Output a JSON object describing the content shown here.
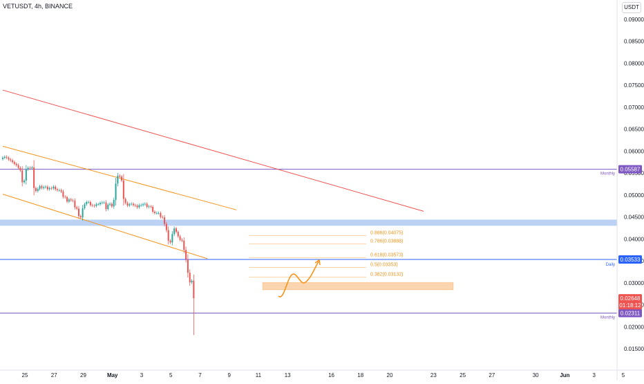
{
  "header": {
    "symbol_line": "VETUSDT, 4h, BINANCE",
    "currency": "USDT"
  },
  "colors": {
    "up": "#26a69a",
    "down": "#ef5350",
    "channel": "#f7931a",
    "trendline": "#ef5350",
    "monthly": "#7e57c2",
    "daily": "#2962ff",
    "zone_blue": "#bbd2f5",
    "zone_orange": "#fbd5b0",
    "projection": "#f7931a"
  },
  "chart_data": {
    "type": "candlestick",
    "price_axis": {
      "min": 0.0105,
      "max": 0.0935,
      "ticks": [
        "0.09000",
        "0.08500",
        "0.08000",
        "0.07500",
        "0.07000",
        "0.06500",
        "0.06000",
        "0.05500",
        "0.05000",
        "0.04500",
        "0.04000",
        "0.03500",
        "0.03000",
        "0.02500",
        "0.02000",
        "0.01500"
      ]
    },
    "time_axis": {
      "labels": [
        {
          "text": "25",
          "i": 0
        },
        {
          "text": "27",
          "i": 12
        },
        {
          "text": "29",
          "i": 24
        },
        {
          "text": "May",
          "i": 36
        },
        {
          "text": "3",
          "i": 48
        },
        {
          "text": "5",
          "i": 60
        },
        {
          "text": "7",
          "i": 72
        },
        {
          "text": "9",
          "i": 84
        },
        {
          "text": "11",
          "i": 96
        },
        {
          "text": "13",
          "i": 108
        },
        {
          "text": "16",
          "i": 126
        },
        {
          "text": "18",
          "i": 138
        },
        {
          "text": "20",
          "i": 150
        },
        {
          "text": "23",
          "i": 168
        },
        {
          "text": "25",
          "i": 180
        },
        {
          "text": "27",
          "i": 192
        },
        {
          "text": "30",
          "i": 210
        },
        {
          "text": "Jun",
          "i": 222
        },
        {
          "text": "3",
          "i": 234
        },
        {
          "text": "5",
          "i": 246
        }
      ]
    },
    "candles_close": [
      0.0585,
      0.0587,
      0.0585,
      0.0581,
      0.0579,
      0.0575,
      0.0571,
      0.0568,
      0.0562,
      0.0556,
      0.0529,
      0.0533,
      0.0559,
      0.0562,
      0.0561,
      0.0563,
      0.0516,
      0.0509,
      0.0514,
      0.052,
      0.0516,
      0.0518,
      0.0519,
      0.0513,
      0.0516,
      0.0515,
      0.0519,
      0.0513,
      0.0511,
      0.0511,
      0.0508,
      0.0496,
      0.0495,
      0.0485,
      0.049,
      0.0488,
      0.0487,
      0.0472,
      0.0469,
      0.0452,
      0.0449,
      0.047,
      0.0479,
      0.0484,
      0.0484,
      0.0477,
      0.0476,
      0.0475,
      0.0479,
      0.0479,
      0.0482,
      0.0483,
      0.0483,
      0.0468,
      0.0478,
      0.048,
      0.0474,
      0.0489,
      0.0526,
      0.0544,
      0.0542,
      0.0533,
      0.0491,
      0.0482,
      0.0476,
      0.0479,
      0.048,
      0.0477,
      0.0476,
      0.0472,
      0.0477,
      0.0477,
      0.0479,
      0.048,
      0.0473,
      0.0474,
      0.0473,
      0.0462,
      0.0459,
      0.0459,
      0.0459,
      0.045,
      0.0449,
      0.0434,
      0.042,
      0.0396,
      0.0392,
      0.0411,
      0.0424,
      0.0416,
      0.0406,
      0.0398,
      0.0396,
      0.0375,
      0.0354,
      0.0323,
      0.0301,
      0.0305,
      0.0265
    ],
    "levels": [
      {
        "label": "Monthly",
        "value": "0.05587",
        "price": 0.05587,
        "color": "#7e57c2"
      },
      {
        "label": "Daily",
        "value": "0.03533",
        "price": 0.03533,
        "color": "#2962ff"
      },
      {
        "label": "Monthly",
        "value": "0.02311",
        "price": 0.02311,
        "color": "#7e57c2"
      }
    ],
    "current_price": {
      "value": "0.02648",
      "countdown": "01:18:12",
      "price": 0.02648
    },
    "fibonacci": [
      {
        "label": "0.886(0.04075)",
        "price": 0.04075
      },
      {
        "label": "0.786(0.03888)",
        "price": 0.03888
      },
      {
        "label": "0.618(0.03573)",
        "price": 0.03573
      },
      {
        "label": "0.5(0.03353)",
        "price": 0.03353
      },
      {
        "label": "0.382(0.03132)",
        "price": 0.03132
      }
    ],
    "zones": [
      {
        "name": "resistance-zone",
        "from": 0.0444,
        "to": 0.043
      },
      {
        "name": "support-zone",
        "from": 0.0301,
        "to": 0.0284
      }
    ],
    "trendlines": [
      {
        "name": "red-descending-trendline",
        "i1": 0,
        "p1": 0.0739,
        "i2": 216,
        "p2": 0.0463
      },
      {
        "name": "channel-upper-line",
        "i1": 0,
        "p1": 0.0611,
        "i2": 120,
        "p2": 0.0466
      },
      {
        "name": "channel-lower-line",
        "i1": 0,
        "p1": 0.0502,
        "i2": 105,
        "p2": 0.0355
      }
    ]
  }
}
